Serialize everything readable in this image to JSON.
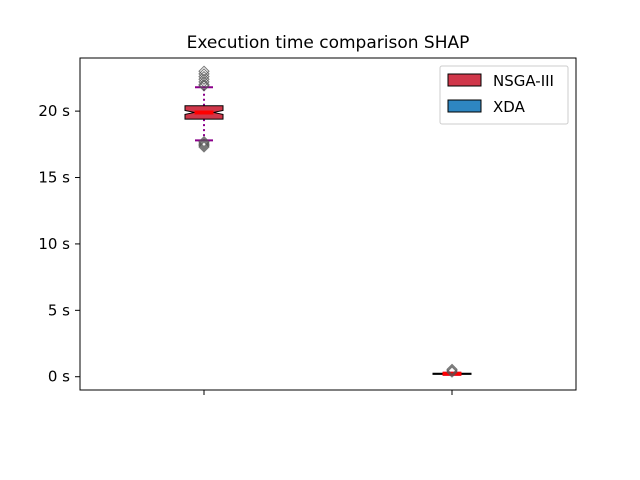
{
  "chart_data": {
    "type": "boxplot",
    "title": "Execution time comparison SHAP",
    "xlabel": "",
    "ylabel": "",
    "ylim": [
      -1.0,
      24.0
    ],
    "y_ticks": [
      0,
      5,
      10,
      15,
      20
    ],
    "y_tick_format": "{v} s",
    "legend": {
      "placement": "top-right",
      "entries": [
        "NSGA-III",
        "XDA"
      ]
    },
    "series": [
      {
        "name": "NSGA-III",
        "color": "#d0374a",
        "q1": 19.4,
        "median": 19.9,
        "q3": 20.4,
        "whisker_low": 17.8,
        "whisker_high": 21.8,
        "notch_low": 19.75,
        "notch_high": 20.05,
        "fliers": [
          17.3,
          17.4,
          17.5,
          17.6,
          17.7,
          21.9,
          22.0,
          22.2,
          22.4,
          22.6,
          22.8,
          23.0
        ]
      },
      {
        "name": "XDA",
        "color": "#2e86c1",
        "q1": 0.18,
        "median": 0.22,
        "q3": 0.26,
        "whisker_low": 0.15,
        "whisker_high": 0.3,
        "notch_low": 0.2,
        "notch_high": 0.24,
        "fliers": [
          0.35,
          0.45,
          0.55
        ]
      }
    ],
    "median_color": "#ff0000",
    "whisker_cap_color": "#8b008b"
  }
}
